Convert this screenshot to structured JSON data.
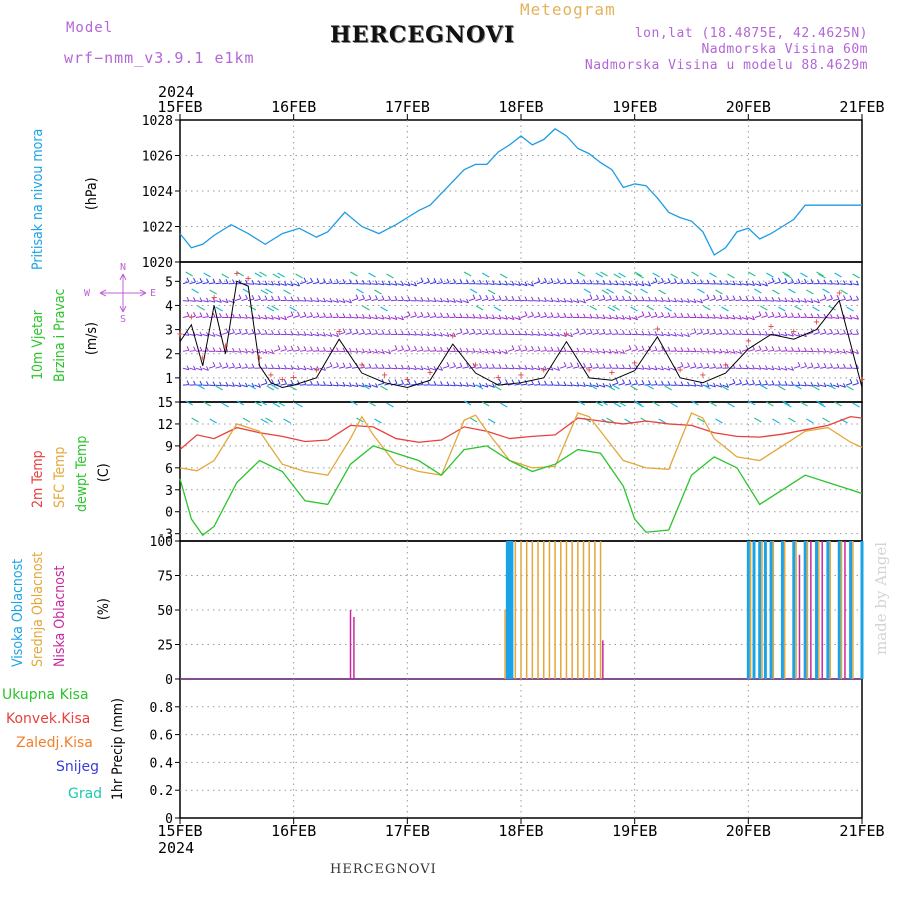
{
  "header": {
    "model_label": "Model",
    "model_name": "wrf−nmm_v3.9.1  e1km",
    "title": "HERCEGNOVI",
    "meteogram": "Meteogram",
    "lonlat": "lon,lat (18.4875E, 42.4625N)",
    "elevation": "Nadmorska Visina 60m",
    "model_elevation": "Nadmorska Visina u modelu 88.4629m"
  },
  "axis": {
    "year_top": "2024",
    "year_bottom": "2024",
    "dates": [
      "15FEB",
      "16FEB",
      "17FEB",
      "18FEB",
      "19FEB",
      "20FEB",
      "21FEB"
    ]
  },
  "labels": {
    "pressure": "Pritisak na nivou mora",
    "pressure_unit": "(hPa)",
    "wind1": "10m Vjetar",
    "wind2": "Brzina i Pravac",
    "wind_unit": "(m/s)",
    "compass_w": "W",
    "compass_e": "E",
    "compass_n": "N",
    "compass_s": "S",
    "temp2m": "2m Temp",
    "sfc": "SFC Temp",
    "dewpt": "dewpt Temp",
    "temp_unit": "(C)",
    "high_cloud": "Visoka Oblacnost",
    "mid_cloud": "Srednja Oblacnost",
    "low_cloud": "Niska Oblacnost",
    "cloud_unit": "(%)",
    "total_precip": "Ukupna Kisa",
    "conv_precip": "Konvek.Kisa",
    "frozen": "Zaledj.Kisa",
    "snow": "Snijeg",
    "grad": "Grad",
    "precip_unit": "1hr Precip (mm)",
    "watermark": "made by Angel",
    "bottom_name": "HERCEGNOVI"
  },
  "colors": {
    "pressure": "#1e9be4",
    "temp2m": "#e8413c",
    "sfc": "#e3a73a",
    "dewpt": "#2bc42b",
    "high_cloud": "#1aa3e8",
    "mid_cloud": "#e3a73a",
    "low_cloud": "#c82a9e",
    "wind_label": "#2bc42b",
    "compass": "#c060d8",
    "model": "#b366d6",
    "meteogram": "#e3b25a"
  },
  "chart_data": [
    {
      "type": "line",
      "title": "",
      "ylabel": "(hPa)",
      "ylim": [
        1020,
        1028
      ],
      "yticks": [
        1020,
        1022,
        1024,
        1026,
        1028
      ],
      "series": [
        {
          "name": "Pritisak na nivou mora",
          "x": [
            0,
            0.1,
            0.2,
            0.3,
            0.45,
            0.6,
            0.75,
            0.9,
            1.05,
            1.2,
            1.3,
            1.45,
            1.6,
            1.75,
            1.9,
            2.0,
            2.1,
            2.2,
            2.35,
            2.5,
            2.6,
            2.7,
            2.8,
            2.9,
            3.0,
            3.1,
            3.2,
            3.3,
            3.4,
            3.5,
            3.6,
            3.7,
            3.8,
            3.9,
            4.0,
            4.1,
            4.2,
            4.3,
            4.4,
            4.5,
            4.6,
            4.7,
            4.8,
            4.9,
            5.0,
            5.1,
            5.2,
            5.3,
            5.4,
            5.5,
            5.6,
            5.7,
            5.8,
            5.9,
            6.0
          ],
          "values": [
            1021.6,
            1020.8,
            1021.0,
            1021.5,
            1022.1,
            1021.6,
            1021.0,
            1021.6,
            1021.9,
            1021.4,
            1021.7,
            1022.8,
            1022.0,
            1021.6,
            1022.1,
            1022.5,
            1022.9,
            1023.2,
            1024.2,
            1025.2,
            1025.5,
            1025.5,
            1026.2,
            1026.6,
            1027.1,
            1026.6,
            1026.9,
            1027.5,
            1027.1,
            1026.4,
            1026.1,
            1025.6,
            1025.2,
            1024.2,
            1024.4,
            1024.3,
            1023.6,
            1022.8,
            1022.5,
            1022.3,
            1021.7,
            1020.4,
            1020.8,
            1021.7,
            1021.9,
            1021.3,
            1021.6,
            1022.0,
            1022.4,
            1023.2,
            1023.2,
            1023.2,
            1023.2,
            1023.2,
            1023.2
          ]
        }
      ]
    },
    {
      "type": "line",
      "title": "",
      "ylabel": "(m/s)",
      "ylim": [
        0,
        5.8
      ],
      "yticks": [
        1,
        2,
        3,
        4,
        5
      ],
      "series": [
        {
          "name": "Brzina",
          "x": [
            0,
            0.1,
            0.2,
            0.3,
            0.4,
            0.5,
            0.6,
            0.7,
            0.8,
            0.9,
            1.0,
            1.2,
            1.4,
            1.6,
            1.8,
            2.0,
            2.2,
            2.4,
            2.6,
            2.8,
            3.0,
            3.2,
            3.4,
            3.6,
            3.8,
            4.0,
            4.2,
            4.4,
            4.6,
            4.8,
            5.0,
            5.2,
            5.4,
            5.6,
            5.8,
            6.0
          ],
          "values": [
            2.5,
            3.2,
            1.5,
            4.0,
            2.0,
            5.0,
            4.8,
            1.5,
            0.8,
            0.6,
            0.7,
            1.0,
            2.6,
            1.2,
            0.8,
            0.6,
            0.9,
            2.4,
            1.2,
            0.7,
            0.8,
            1.0,
            2.5,
            1.0,
            0.9,
            1.3,
            2.7,
            1.0,
            0.8,
            1.2,
            2.2,
            2.8,
            2.6,
            3.0,
            4.2,
            0.6
          ]
        }
      ]
    },
    {
      "type": "line",
      "title": "",
      "ylabel": "(C)",
      "ylim": [
        -4,
        15
      ],
      "yticks": [
        -3,
        0,
        3,
        6,
        9,
        12,
        15
      ],
      "series": [
        {
          "name": "2m Temp",
          "x": [
            0,
            0.15,
            0.3,
            0.5,
            0.7,
            0.9,
            1.1,
            1.3,
            1.5,
            1.7,
            1.9,
            2.1,
            2.3,
            2.5,
            2.7,
            2.9,
            3.1,
            3.3,
            3.5,
            3.7,
            3.9,
            4.1,
            4.3,
            4.5,
            4.7,
            4.9,
            5.1,
            5.3,
            5.5,
            5.7,
            5.9,
            6.0
          ],
          "values": [
            8.5,
            10.5,
            10.0,
            11.5,
            10.8,
            10.3,
            9.6,
            9.8,
            11.8,
            11.6,
            10.0,
            9.5,
            9.8,
            11.6,
            11.0,
            10.0,
            10.3,
            10.5,
            12.8,
            12.4,
            12.0,
            12.4,
            12.0,
            11.8,
            10.8,
            10.3,
            10.2,
            10.6,
            11.2,
            11.8,
            13.0,
            12.8
          ]
        },
        {
          "name": "SFC Temp",
          "x": [
            0,
            0.15,
            0.3,
            0.5,
            0.7,
            0.9,
            1.1,
            1.3,
            1.5,
            1.6,
            1.7,
            1.9,
            2.1,
            2.3,
            2.5,
            2.6,
            2.7,
            2.9,
            3.1,
            3.3,
            3.5,
            3.6,
            3.7,
            3.9,
            4.1,
            4.3,
            4.5,
            4.6,
            4.7,
            4.9,
            5.1,
            5.3,
            5.5,
            5.7,
            5.9,
            6.0
          ],
          "values": [
            6.0,
            5.6,
            7.0,
            12.0,
            11.0,
            6.5,
            5.5,
            5.0,
            10.0,
            13.0,
            10.5,
            6.5,
            5.5,
            5.0,
            12.5,
            13.2,
            11.0,
            7.0,
            6.0,
            6.2,
            13.5,
            13.0,
            11.0,
            7.0,
            6.0,
            5.8,
            13.5,
            12.8,
            10.0,
            7.5,
            7.0,
            9.0,
            11.0,
            11.5,
            9.5,
            8.8
          ]
        },
        {
          "name": "dewpt Temp",
          "x": [
            0,
            0.1,
            0.2,
            0.3,
            0.5,
            0.7,
            0.9,
            1.1,
            1.3,
            1.5,
            1.7,
            1.9,
            2.1,
            2.3,
            2.5,
            2.7,
            2.9,
            3.1,
            3.3,
            3.5,
            3.7,
            3.9,
            4.0,
            4.1,
            4.3,
            4.5,
            4.7,
            4.9,
            5.1,
            5.3,
            5.5,
            5.7,
            5.9,
            6.0
          ],
          "values": [
            4.5,
            -1.0,
            -3.2,
            -2.0,
            4.0,
            7.0,
            5.5,
            1.5,
            1.0,
            6.5,
            9.0,
            8.0,
            7.0,
            5.0,
            8.5,
            9.0,
            7.0,
            5.5,
            6.5,
            8.5,
            8.0,
            3.5,
            -1.0,
            -2.8,
            -2.5,
            5.0,
            7.5,
            6.0,
            1.0,
            3.0,
            5.0,
            4.0,
            3.0,
            2.5
          ]
        }
      ]
    },
    {
      "type": "bar",
      "title": "",
      "ylabel": "(%)",
      "ylim": [
        0,
        100
      ],
      "yticks": [
        0,
        25,
        50,
        75,
        100
      ],
      "series": [
        {
          "name": "Visoka Oblacnost",
          "x": [
            2.88,
            2.9,
            2.92,
            5.0,
            5.05,
            5.1,
            5.15,
            5.2,
            5.3,
            5.4,
            5.5,
            5.6,
            5.7,
            5.8,
            5.9,
            6.0
          ],
          "values": [
            100,
            100,
            100,
            100,
            100,
            100,
            100,
            100,
            100,
            100,
            100,
            100,
            100,
            100,
            100,
            100
          ]
        },
        {
          "name": "Srednja Oblacnost",
          "x": [
            2.86,
            2.95,
            3.0,
            3.05,
            3.1,
            3.15,
            3.2,
            3.25,
            3.3,
            3.35,
            3.4,
            3.45,
            3.5,
            3.55,
            3.6,
            3.65,
            3.7,
            5.02,
            5.12,
            5.22,
            5.32,
            5.42,
            5.52,
            5.62,
            5.72,
            5.82,
            5.92
          ],
          "values": [
            50,
            100,
            100,
            100,
            100,
            100,
            100,
            100,
            100,
            100,
            100,
            100,
            100,
            100,
            100,
            100,
            100,
            100,
            100,
            100,
            100,
            100,
            100,
            100,
            100,
            100,
            100
          ]
        },
        {
          "name": "Niska Oblacnost",
          "x": [
            1.5,
            1.53,
            3.72,
            5.45,
            5.55,
            5.65,
            5.85
          ],
          "values": [
            50,
            45,
            28,
            90,
            100,
            100,
            100
          ]
        }
      ]
    },
    {
      "type": "bar",
      "title": "",
      "ylabel": "1hr Precip (mm)",
      "ylim": [
        0,
        1.0
      ],
      "yticks": [
        0,
        0.2,
        0.4,
        0.6,
        0.8
      ],
      "series": [
        {
          "name": "Ukupna Kisa",
          "x": [],
          "values": []
        }
      ]
    }
  ]
}
